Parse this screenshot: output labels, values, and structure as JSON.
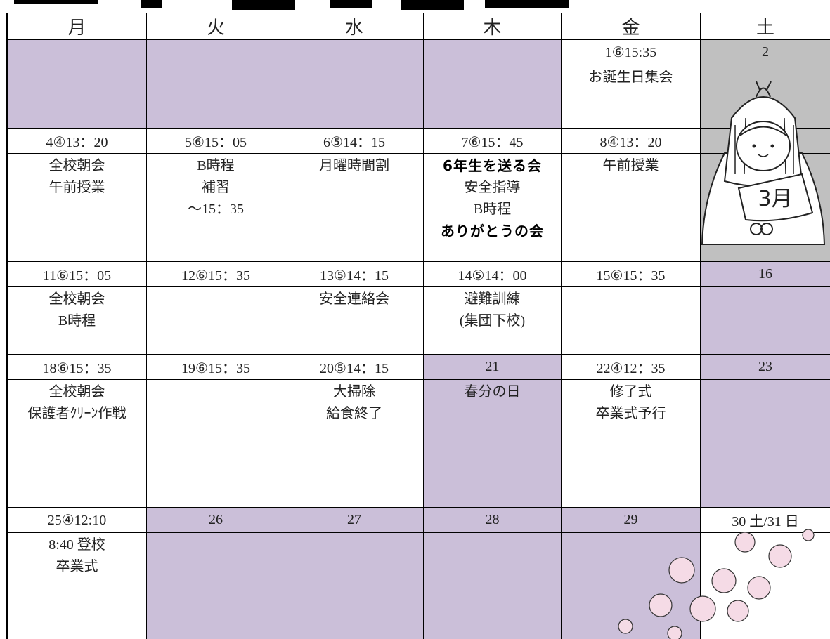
{
  "header": {
    "days": [
      "月",
      "火",
      "水",
      "木",
      "金",
      "土"
    ]
  },
  "weeks": [
    {
      "cells": [
        {
          "date": "1⑥15:35",
          "events": [
            "お誕生日集会"
          ]
        },
        {
          "date": "2"
        }
      ]
    },
    {
      "cells": [
        {
          "date": "4④13：20",
          "events": [
            "全校朝会",
            "午前授業"
          ]
        },
        {
          "date": "5⑥15：05",
          "events": [
            "B時程",
            "補習",
            "～15：35"
          ]
        },
        {
          "date": "6⑤14：15",
          "events": [
            "月曜時間割"
          ]
        },
        {
          "date": "7⑥15：45",
          "events": [
            "6年生を送る会",
            "安全指導",
            "B時程",
            "ありがとうの会"
          ]
        },
        {
          "date": "8④13：20",
          "events": [
            "午前授業"
          ]
        }
      ]
    },
    {
      "cells": [
        {
          "date": "11⑥15：05",
          "events": [
            "全校朝会",
            "B時程"
          ]
        },
        {
          "date": "12⑥15：35"
        },
        {
          "date": "13⑤14：15",
          "events": [
            "安全連絡会"
          ]
        },
        {
          "date": "14⑤14：00",
          "events": [
            "避難訓練",
            "(集団下校)"
          ]
        },
        {
          "date": "15⑥15：35"
        },
        {
          "date": "16"
        }
      ]
    },
    {
      "cells": [
        {
          "date": "18⑥15：35",
          "events": [
            "全校朝会",
            "保護者ｸﾘｰﾝ作戦"
          ]
        },
        {
          "date": "19⑥15：35"
        },
        {
          "date": "20⑤14：15",
          "events": [
            "大掃除",
            "給食終了"
          ]
        },
        {
          "date": "21",
          "events": [
            "春分の日"
          ]
        },
        {
          "date": "22④12：35",
          "events": [
            "修了式",
            "卒業式予行"
          ]
        },
        {
          "date": "23"
        }
      ]
    },
    {
      "cells": [
        {
          "date": "25④12:10",
          "events": [
            "8:40 登校",
            "卒業式"
          ]
        },
        {
          "date": "26"
        },
        {
          "date": "27"
        },
        {
          "date": "28"
        },
        {
          "date": "29"
        },
        {
          "date": "30 土/31 日"
        }
      ]
    }
  ],
  "illustration": {
    "text": "3月"
  }
}
